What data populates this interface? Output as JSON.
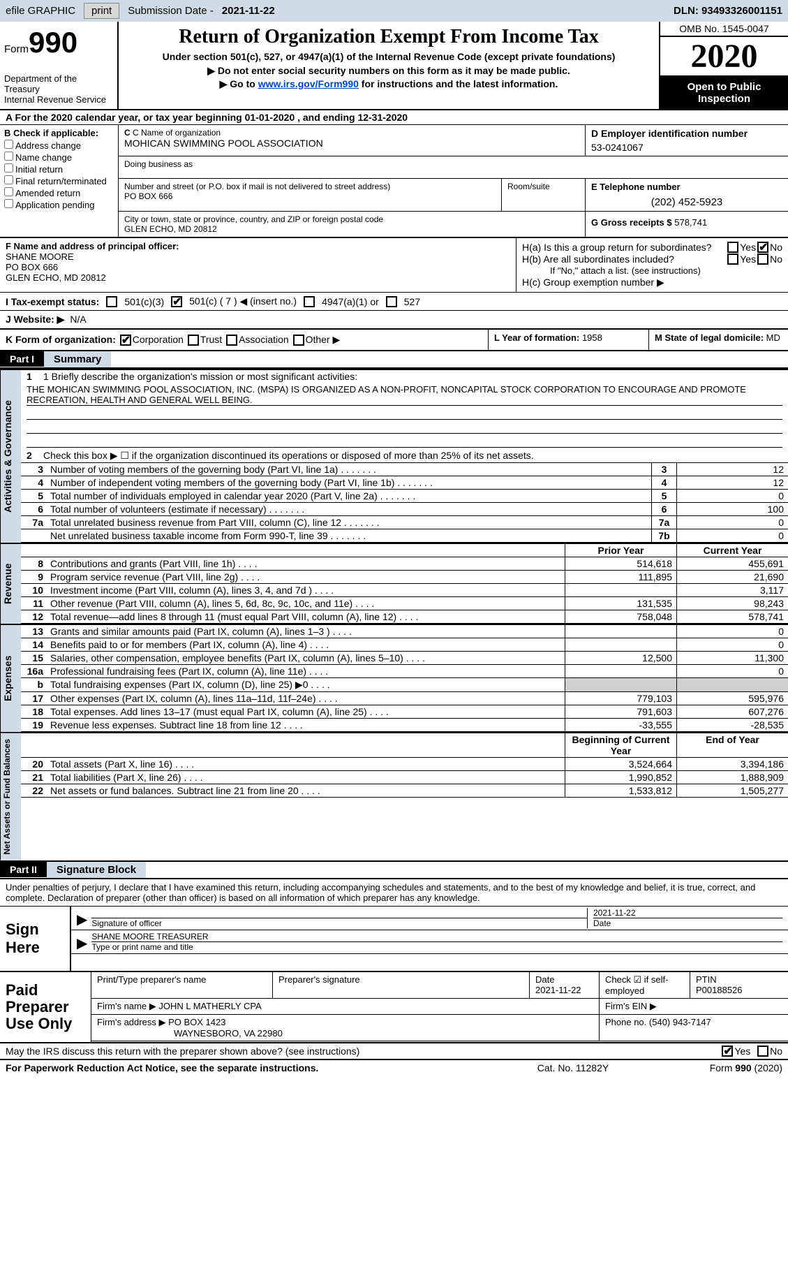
{
  "topbar": {
    "efile": "efile GRAPHIC",
    "print": "print",
    "subdate_lbl": "Submission Date -",
    "subdate": "2021-11-22",
    "dln_lbl": "DLN:",
    "dln": "93493326001151"
  },
  "header": {
    "form_lbl": "Form",
    "form_no": "990",
    "dept": "Department of the Treasury\nInternal Revenue Service",
    "title": "Return of Organization Exempt From Income Tax",
    "subtitle": "Under section 501(c), 527, or 4947(a)(1) of the Internal Revenue Code (except private foundations)",
    "note1": "▶ Do not enter social security numbers on this form as it may be made public.",
    "note2_pre": "▶ Go to ",
    "note2_link": "www.irs.gov/Form990",
    "note2_post": " for instructions and the latest information.",
    "omb": "OMB No. 1545-0047",
    "year": "2020",
    "inspect": "Open to Public Inspection"
  },
  "row_a": "A For the 2020 calendar year, or tax year beginning 01-01-2020    , and ending 12-31-2020",
  "box_b": {
    "hdr": "B Check if applicable:",
    "opts": [
      "Address change",
      "Name change",
      "Initial return",
      "Final return/terminated",
      "Amended return",
      "Application pending"
    ]
  },
  "box_c": {
    "name_lbl": "C Name of organization",
    "name": "MOHICAN SWIMMING POOL ASSOCIATION",
    "dba_lbl": "Doing business as",
    "addr_lbl": "Number and street (or P.O. box if mail is not delivered to street address)",
    "addr": "PO BOX 666",
    "room_lbl": "Room/suite",
    "city_lbl": "City or town, state or province, country, and ZIP or foreign postal code",
    "city": "GLEN ECHO, MD  20812"
  },
  "box_d": {
    "lbl": "D Employer identification number",
    "val": "53-0241067"
  },
  "box_e": {
    "lbl": "E Telephone number",
    "val": "(202) 452-5923"
  },
  "box_g": {
    "lbl": "G Gross receipts $",
    "val": "578,741"
  },
  "box_f": {
    "lbl": "F Name and address of principal officer:",
    "name": "SHANE MOORE",
    "addr1": "PO BOX 666",
    "addr2": "GLEN ECHO, MD  20812"
  },
  "box_h": {
    "ha": "H(a)  Is this a group return for subordinates?",
    "hb": "H(b)  Are all subordinates included?",
    "hb_note": "If \"No,\" attach a list. (see instructions)",
    "hc": "H(c)  Group exemption number ▶",
    "yes": "Yes",
    "no": "No"
  },
  "box_i": {
    "lbl": "I    Tax-exempt status:",
    "opts": [
      "501(c)(3)",
      "501(c) ( 7 ) ◀ (insert no.)",
      "4947(a)(1) or",
      "527"
    ]
  },
  "box_j": {
    "lbl": "J   Website: ▶",
    "val": "N/A"
  },
  "box_k": {
    "lbl": "K Form of organization:",
    "opts": [
      "Corporation",
      "Trust",
      "Association",
      "Other ▶"
    ]
  },
  "box_l": {
    "lbl": "L Year of formation:",
    "val": "1958"
  },
  "box_m": {
    "lbl": "M State of legal domicile:",
    "val": "MD"
  },
  "parts": {
    "p1": "Part I",
    "p1_title": "Summary",
    "p2": "Part II",
    "p2_title": "Signature Block"
  },
  "summary": {
    "l1_lbl": "1  Briefly describe the organization's mission or most significant activities:",
    "l1_txt": "THE MOHICAN SWIMMING POOL ASSOCIATION, INC. (MSPA) IS ORGANIZED AS A NON-PROFIT, NONCAPITAL STOCK CORPORATION TO ENCOURAGE AND PROMOTE RECREATION, HEALTH AND GENERAL WELL BEING.",
    "l2": "Check this box ▶ ☐ if the organization discontinued its operations or disposed of more than 25% of its net assets.",
    "lines_gov": [
      {
        "n": "3",
        "t": "Number of voting members of the governing body (Part VI, line 1a)",
        "b": "3",
        "v": "12"
      },
      {
        "n": "4",
        "t": "Number of independent voting members of the governing body (Part VI, line 1b)",
        "b": "4",
        "v": "12"
      },
      {
        "n": "5",
        "t": "Total number of individuals employed in calendar year 2020 (Part V, line 2a)",
        "b": "5",
        "v": "0"
      },
      {
        "n": "6",
        "t": "Total number of volunteers (estimate if necessary)",
        "b": "6",
        "v": "100"
      },
      {
        "n": "7a",
        "t": "Total unrelated business revenue from Part VIII, column (C), line 12",
        "b": "7a",
        "v": "0"
      },
      {
        "n": "",
        "t": "Net unrelated business taxable income from Form 990-T, line 39",
        "b": "7b",
        "v": "0"
      }
    ],
    "hdr_prior": "Prior Year",
    "hdr_curr": "Current Year",
    "rev": [
      {
        "n": "8",
        "t": "Contributions and grants (Part VIII, line 1h)",
        "p": "514,618",
        "c": "455,691"
      },
      {
        "n": "9",
        "t": "Program service revenue (Part VIII, line 2g)",
        "p": "111,895",
        "c": "21,690"
      },
      {
        "n": "10",
        "t": "Investment income (Part VIII, column (A), lines 3, 4, and 7d )",
        "p": "",
        "c": "3,117"
      },
      {
        "n": "11",
        "t": "Other revenue (Part VIII, column (A), lines 5, 6d, 8c, 9c, 10c, and 11e)",
        "p": "131,535",
        "c": "98,243"
      },
      {
        "n": "12",
        "t": "Total revenue—add lines 8 through 11 (must equal Part VIII, column (A), line 12)",
        "p": "758,048",
        "c": "578,741"
      }
    ],
    "exp": [
      {
        "n": "13",
        "t": "Grants and similar amounts paid (Part IX, column (A), lines 1–3 )",
        "p": "",
        "c": "0"
      },
      {
        "n": "14",
        "t": "Benefits paid to or for members (Part IX, column (A), line 4)",
        "p": "",
        "c": "0"
      },
      {
        "n": "15",
        "t": "Salaries, other compensation, employee benefits (Part IX, column (A), lines 5–10)",
        "p": "12,500",
        "c": "11,300"
      },
      {
        "n": "16a",
        "t": "Professional fundraising fees (Part IX, column (A), line 11e)",
        "p": "",
        "c": "0"
      },
      {
        "n": "b",
        "t": "Total fundraising expenses (Part IX, column (D), line 25) ▶0",
        "p": "SHADE",
        "c": "SHADE"
      },
      {
        "n": "17",
        "t": "Other expenses (Part IX, column (A), lines 11a–11d, 11f–24e)",
        "p": "779,103",
        "c": "595,976"
      },
      {
        "n": "18",
        "t": "Total expenses. Add lines 13–17 (must equal Part IX, column (A), line 25)",
        "p": "791,603",
        "c": "607,276"
      },
      {
        "n": "19",
        "t": "Revenue less expenses. Subtract line 18 from line 12",
        "p": "-33,555",
        "c": "-28,535"
      }
    ],
    "hdr_beg": "Beginning of Current Year",
    "hdr_end": "End of Year",
    "net": [
      {
        "n": "20",
        "t": "Total assets (Part X, line 16)",
        "p": "3,524,664",
        "c": "3,394,186"
      },
      {
        "n": "21",
        "t": "Total liabilities (Part X, line 26)",
        "p": "1,990,852",
        "c": "1,888,909"
      },
      {
        "n": "22",
        "t": "Net assets or fund balances. Subtract line 21 from line 20",
        "p": "1,533,812",
        "c": "1,505,277"
      }
    ]
  },
  "vtabs": {
    "gov": "Activities & Governance",
    "rev": "Revenue",
    "exp": "Expenses",
    "net": "Net Assets or Fund Balances"
  },
  "sig": {
    "intro": "Under penalties of perjury, I declare that I have examined this return, including accompanying schedules and statements, and to the best of my knowledge and belief, it is true, correct, and complete. Declaration of preparer (other than officer) is based on all information of which preparer has any knowledge.",
    "sign_here": "Sign Here",
    "sig_lbl": "Signature of officer",
    "date_lbl": "Date",
    "date": "2021-11-22",
    "name": "SHANE MOORE  TREASURER",
    "name_lbl": "Type or print name and title"
  },
  "prep": {
    "lbl": "Paid Preparer Use Only",
    "h1": "Print/Type preparer's name",
    "h2": "Preparer's signature",
    "h3": "Date",
    "h3v": "2021-11-22",
    "h4": "Check ☑ if self-employed",
    "h5": "PTIN",
    "h5v": "P00188526",
    "firm_lbl": "Firm's name   ▶",
    "firm": "JOHN L MATHERLY CPA",
    "ein_lbl": "Firm's EIN ▶",
    "addr_lbl": "Firm's address ▶",
    "addr1": "PO BOX 1423",
    "addr2": "WAYNESBORO, VA  22980",
    "phone_lbl": "Phone no.",
    "phone": "(540) 943-7147"
  },
  "discuss": {
    "txt": "May the IRS discuss this return with the preparer shown above? (see instructions)",
    "yes": "Yes",
    "no": "No"
  },
  "footer": {
    "l": "For Paperwork Reduction Act Notice, see the separate instructions.",
    "m": "Cat. No. 11282Y",
    "r": "Form 990 (2020)"
  }
}
